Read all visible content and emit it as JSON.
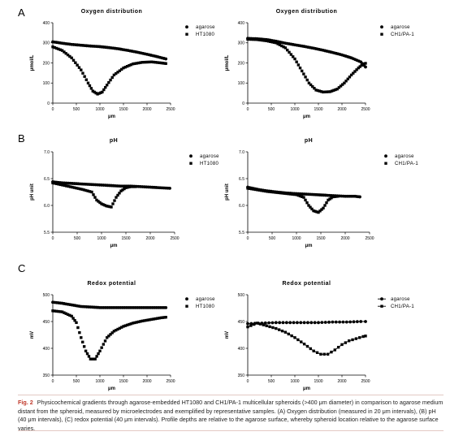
{
  "panels": [
    "A",
    "B",
    "C"
  ],
  "caption": {
    "label": "Fig. 2",
    "text": "Physicochemical gradients through agarose-embedded HT1080 and CH1/PA-1 multicellular spheroids (>400 μm diameter) in comparison to agarose medium distant from the spheroid, measured by microelectrodes and exemplified by representative samples. (A) Oxygen distribution (measured in 20 μm intervals), (B) pH (40 μm intervals), (C) redox potential (40 μm intervals). Profile depths are relative to the agarose surface, whereby spheroid location relative to the agarose surface varies."
  },
  "chart_data": [
    {
      "id": "oxygen-ht1080",
      "type": "scatter",
      "title": "Oxygen distribution",
      "xlabel": "μm",
      "ylabel": "μmol/L",
      "xlim": [
        0,
        2500
      ],
      "ylim": [
        0,
        400
      ],
      "xticks": [
        0,
        500,
        1000,
        1500,
        2000,
        2500
      ],
      "yticks": [
        0,
        100,
        200,
        300,
        400
      ],
      "legend_position": "top-right",
      "series": [
        {
          "name": "agarose",
          "marker": "circle",
          "points": [
            [
              0,
              305
            ],
            [
              200,
              298
            ],
            [
              400,
              292
            ],
            [
              600,
              288
            ],
            [
              800,
              284
            ],
            [
              1000,
              281
            ],
            [
              1200,
              276
            ],
            [
              1400,
              270
            ],
            [
              1600,
              262
            ],
            [
              1800,
              253
            ],
            [
              2000,
              243
            ],
            [
              2200,
              232
            ],
            [
              2400,
              220
            ]
          ]
        },
        {
          "name": "HT1080",
          "marker": "square",
          "points": [
            [
              0,
              280
            ],
            [
              200,
              262
            ],
            [
              400,
              225
            ],
            [
              600,
              165
            ],
            [
              750,
              100
            ],
            [
              850,
              60
            ],
            [
              950,
              45
            ],
            [
              1050,
              55
            ],
            [
              1150,
              90
            ],
            [
              1300,
              140
            ],
            [
              1500,
              175
            ],
            [
              1700,
              195
            ],
            [
              1900,
              203
            ],
            [
              2100,
              205
            ],
            [
              2300,
              200
            ],
            [
              2400,
              197
            ]
          ]
        }
      ]
    },
    {
      "id": "oxygen-ch1pa1",
      "type": "scatter",
      "title": "Oxygen distribution",
      "xlabel": "μm",
      "ylabel": "μmol/L",
      "xlim": [
        0,
        2500
      ],
      "ylim": [
        0,
        400
      ],
      "xticks": [
        0,
        500,
        1000,
        1500,
        2000,
        2500
      ],
      "yticks": [
        0,
        100,
        200,
        300,
        400
      ],
      "legend_position": "top-right",
      "series": [
        {
          "name": "agarose",
          "marker": "circle",
          "points": [
            [
              0,
              322
            ],
            [
              200,
              320
            ],
            [
              400,
              316
            ],
            [
              600,
              308
            ],
            [
              800,
              298
            ],
            [
              1000,
              290
            ],
            [
              1200,
              282
            ],
            [
              1400,
              273
            ],
            [
              1600,
              263
            ],
            [
              1800,
              252
            ],
            [
              2000,
              240
            ],
            [
              2200,
              225
            ],
            [
              2400,
              205
            ],
            [
              2500,
              180
            ]
          ]
        },
        {
          "name": "CH1/PA-1",
          "marker": "square",
          "points": [
            [
              0,
              318
            ],
            [
              200,
              316
            ],
            [
              400,
              310
            ],
            [
              600,
              300
            ],
            [
              800,
              275
            ],
            [
              1000,
              220
            ],
            [
              1150,
              160
            ],
            [
              1300,
              100
            ],
            [
              1450,
              65
            ],
            [
              1600,
              55
            ],
            [
              1750,
              57
            ],
            [
              1900,
              70
            ],
            [
              2050,
              100
            ],
            [
              2200,
              140
            ],
            [
              2350,
              175
            ],
            [
              2450,
              195
            ],
            [
              2500,
              198
            ]
          ]
        }
      ]
    },
    {
      "id": "ph-ht1080",
      "type": "scatter",
      "title": "pH",
      "xlabel": "μm",
      "ylabel": "pH unit",
      "xlim": [
        0,
        2500
      ],
      "ylim": [
        5.5,
        7.0
      ],
      "xticks": [
        0,
        500,
        1000,
        1500,
        2000,
        2500
      ],
      "yticks": [
        5.5,
        6.0,
        6.5,
        7.0
      ],
      "legend_position": "top-right",
      "series": [
        {
          "name": "agarose",
          "marker": "circle",
          "points": [
            [
              0,
              6.44
            ],
            [
              200,
              6.42
            ],
            [
              400,
              6.41
            ],
            [
              600,
              6.4
            ],
            [
              800,
              6.39
            ],
            [
              1000,
              6.38
            ],
            [
              1200,
              6.37
            ],
            [
              1400,
              6.36
            ],
            [
              1600,
              6.36
            ],
            [
              1800,
              6.35
            ],
            [
              2000,
              6.34
            ],
            [
              2200,
              6.33
            ],
            [
              2400,
              6.32
            ]
          ]
        },
        {
          "name": "HT1080",
          "marker": "square",
          "points": [
            [
              0,
              6.42
            ],
            [
              200,
              6.38
            ],
            [
              400,
              6.34
            ],
            [
              600,
              6.3
            ],
            [
              800,
              6.25
            ],
            [
              900,
              6.1
            ],
            [
              1000,
              6.03
            ],
            [
              1100,
              5.99
            ],
            [
              1200,
              5.97
            ],
            [
              1300,
              6.15
            ],
            [
              1400,
              6.27
            ],
            [
              1500,
              6.33
            ],
            [
              1600,
              6.35
            ],
            [
              1700,
              6.35
            ]
          ]
        }
      ]
    },
    {
      "id": "ph-ch1pa1",
      "type": "scatter",
      "title": "pH",
      "xlabel": "μm",
      "ylabel": "pH unit",
      "xlim": [
        0,
        2500
      ],
      "ylim": [
        5.5,
        7.0
      ],
      "xticks": [
        0,
        500,
        1000,
        1500,
        2000,
        2500
      ],
      "yticks": [
        5.5,
        6.0,
        6.5,
        7.0
      ],
      "legend_position": "top-right",
      "series": [
        {
          "name": "agarose",
          "marker": "circle",
          "points": [
            [
              0,
              6.34
            ],
            [
              200,
              6.3
            ],
            [
              400,
              6.27
            ],
            [
              600,
              6.25
            ],
            [
              800,
              6.23
            ],
            [
              1000,
              6.22
            ],
            [
              1200,
              6.21
            ],
            [
              1400,
              6.2
            ],
            [
              1600,
              6.19
            ],
            [
              1800,
              6.18
            ],
            [
              2000,
              6.17
            ],
            [
              2200,
              6.17
            ],
            [
              2300,
              6.16
            ]
          ]
        },
        {
          "name": "CH1/PA-1",
          "marker": "square",
          "points": [
            [
              0,
              6.32
            ],
            [
              200,
              6.29
            ],
            [
              400,
              6.26
            ],
            [
              600,
              6.24
            ],
            [
              800,
              6.22
            ],
            [
              1000,
              6.2
            ],
            [
              1150,
              6.15
            ],
            [
              1250,
              6.0
            ],
            [
              1350,
              5.9
            ],
            [
              1450,
              5.87
            ],
            [
              1550,
              5.95
            ],
            [
              1650,
              6.1
            ],
            [
              1750,
              6.16
            ],
            [
              1850,
              6.17
            ]
          ]
        }
      ]
    },
    {
      "id": "redox-ht1080",
      "type": "scatter",
      "title": "Redox potential",
      "xlabel": "μm",
      "ylabel": "mV",
      "xlim": [
        0,
        2500
      ],
      "ylim": [
        350,
        500
      ],
      "xticks": [
        0,
        500,
        1000,
        1500,
        2000,
        2500
      ],
      "yticks": [
        350,
        400,
        450,
        500
      ],
      "legend_position": "top-right",
      "series": [
        {
          "name": "agarose",
          "marker": "circle",
          "points": [
            [
              0,
              486
            ],
            [
              200,
              484
            ],
            [
              400,
              481
            ],
            [
              600,
              478
            ],
            [
              800,
              477
            ],
            [
              1000,
              476
            ],
            [
              1200,
              476
            ],
            [
              1400,
              476
            ],
            [
              1600,
              476
            ],
            [
              1800,
              476
            ],
            [
              2000,
              476
            ],
            [
              2200,
              476
            ],
            [
              2400,
              476
            ]
          ]
        },
        {
          "name": "HT1080",
          "marker": "square",
          "points": [
            [
              0,
              470
            ],
            [
              200,
              468
            ],
            [
              400,
              460
            ],
            [
              500,
              448
            ],
            [
              600,
              420
            ],
            [
              700,
              395
            ],
            [
              800,
              380
            ],
            [
              900,
              380
            ],
            [
              1000,
              395
            ],
            [
              1150,
              420
            ],
            [
              1300,
              432
            ],
            [
              1500,
              441
            ],
            [
              1700,
              447
            ],
            [
              1900,
              451
            ],
            [
              2100,
              454
            ],
            [
              2300,
              457
            ],
            [
              2400,
              458
            ]
          ]
        }
      ]
    },
    {
      "id": "redox-ch1pa1",
      "type": "line",
      "title": "Redox potential",
      "xlabel": "μm",
      "ylabel": "mV",
      "xlim": [
        0,
        2500
      ],
      "ylim": [
        350,
        500
      ],
      "xticks": [
        0,
        500,
        1000,
        1500,
        2000,
        2500
      ],
      "yticks": [
        350,
        400,
        450,
        500
      ],
      "legend_position": "top-right",
      "series": [
        {
          "name": "agarose",
          "marker": "circle",
          "points": [
            [
              0,
              446
            ],
            [
              300,
              447
            ],
            [
              600,
              448
            ],
            [
              900,
              448
            ],
            [
              1200,
              448
            ],
            [
              1500,
              448
            ],
            [
              1800,
              449
            ],
            [
              2100,
              449
            ],
            [
              2400,
              450
            ],
            [
              2500,
              450
            ]
          ]
        },
        {
          "name": "CH1/PA-1",
          "marker": "square",
          "points": [
            [
              0,
              440
            ],
            [
              200,
              447
            ],
            [
              400,
              442
            ],
            [
              600,
              437
            ],
            [
              800,
              430
            ],
            [
              1000,
              420
            ],
            [
              1200,
              408
            ],
            [
              1400,
              395
            ],
            [
              1550,
              389
            ],
            [
              1700,
              389
            ],
            [
              1850,
              397
            ],
            [
              2000,
              407
            ],
            [
              2150,
              414
            ],
            [
              2300,
              418
            ],
            [
              2450,
              422
            ],
            [
              2500,
              423
            ]
          ]
        }
      ]
    }
  ]
}
